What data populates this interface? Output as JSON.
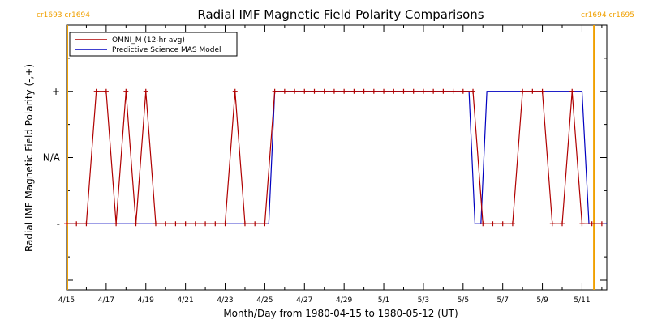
{
  "chart_data": {
    "type": "line",
    "title": "Radial IMF Magnetic Field Polarity Comparisons",
    "xlabel": "Month/Day from 1980-04-15 to 1980-05-12 (UT)",
    "ylabel": "Radial IMF Magnetic Field Polarity (-,+)",
    "x_tick_labels": [
      "4/15",
      "4/17",
      "4/19",
      "4/21",
      "4/23",
      "4/25",
      "4/27",
      "4/29",
      "5/1",
      "5/3",
      "5/5",
      "5/7",
      "5/9",
      "5/11"
    ],
    "x_tick_days": [
      0,
      2,
      4,
      6,
      8,
      10,
      12,
      14,
      16,
      18,
      20,
      22,
      24,
      26
    ],
    "xlim_days": [
      0,
      27.25
    ],
    "y_tick_labels": [
      "-",
      "N/A",
      "+"
    ],
    "ylim": [
      -2,
      2
    ],
    "carrington_markers": [
      {
        "label": "cr1693 cr1694",
        "day": 0,
        "align": "left"
      },
      {
        "label": "cr1694 cr1695",
        "day": 26.6,
        "align": "right"
      }
    ],
    "marker_color": "#f0a000",
    "series": [
      {
        "name": "OMNI_M (12-hr avg)",
        "color": "#b00000",
        "markers": true,
        "x": [
          0,
          0.5,
          1,
          1.5,
          2,
          2.5,
          3,
          3.5,
          4,
          4.5,
          5,
          5.5,
          6,
          6.5,
          7,
          7.5,
          8,
          8.5,
          9,
          9.5,
          10,
          10.5,
          11,
          11.5,
          12,
          12.5,
          13,
          13.5,
          14,
          14.5,
          15,
          15.5,
          16,
          16.5,
          17,
          17.5,
          18,
          18.5,
          19,
          19.5,
          20,
          20.5,
          21,
          21.5,
          22,
          22.5,
          23,
          23.5,
          24,
          24.5,
          25,
          25.5,
          26,
          26.5,
          27
        ],
        "y": [
          -1,
          -1,
          -1,
          1,
          1,
          -1,
          1,
          -1,
          1,
          -1,
          -1,
          -1,
          -1,
          -1,
          -1,
          -1,
          -1,
          1,
          -1,
          -1,
          -1,
          1,
          1,
          1,
          1,
          1,
          1,
          1,
          1,
          1,
          1,
          1,
          1,
          1,
          1,
          1,
          1,
          1,
          1,
          1,
          1,
          1,
          -1,
          -1,
          -1,
          -1,
          1,
          1,
          1,
          -1,
          -1,
          1,
          -1,
          -1,
          -1
        ]
      },
      {
        "name": "Predictive Science MAS Model",
        "color": "#0000c0",
        "markers": false,
        "x": [
          0,
          10.2,
          10.5,
          20.3,
          20.6,
          20.9,
          21.2,
          26.0,
          26.35,
          27.25
        ],
        "y": [
          -1,
          -1,
          1,
          1,
          -1,
          -1,
          1,
          1,
          -1,
          -1
        ]
      }
    ],
    "legend": {
      "position": "top-left",
      "entries": [
        "OMNI_M (12-hr avg)",
        "Predictive Science MAS Model"
      ]
    },
    "grid": false
  }
}
